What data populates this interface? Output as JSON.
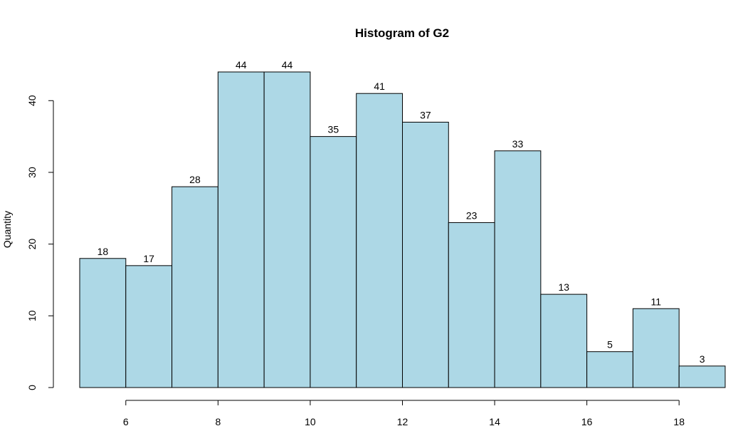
{
  "chart_data": {
    "type": "bar",
    "title": "Histogram of G2",
    "xlabel": "",
    "ylabel": "Quantity",
    "bin_edges": [
      5,
      6,
      7,
      8,
      9,
      10,
      11,
      12,
      13,
      14,
      15,
      16,
      17,
      18,
      19
    ],
    "values": [
      18,
      17,
      28,
      44,
      44,
      35,
      41,
      37,
      23,
      33,
      13,
      5,
      11,
      3
    ],
    "xticks": [
      6,
      8,
      10,
      12,
      14,
      16,
      18
    ],
    "yticks": [
      0,
      10,
      20,
      30,
      40
    ],
    "xlim": [
      5,
      19
    ],
    "ylim": [
      0,
      44
    ],
    "bar_color": "#ADD8E6",
    "edge_color": "#000000",
    "grid": false,
    "show_bar_labels": true
  }
}
